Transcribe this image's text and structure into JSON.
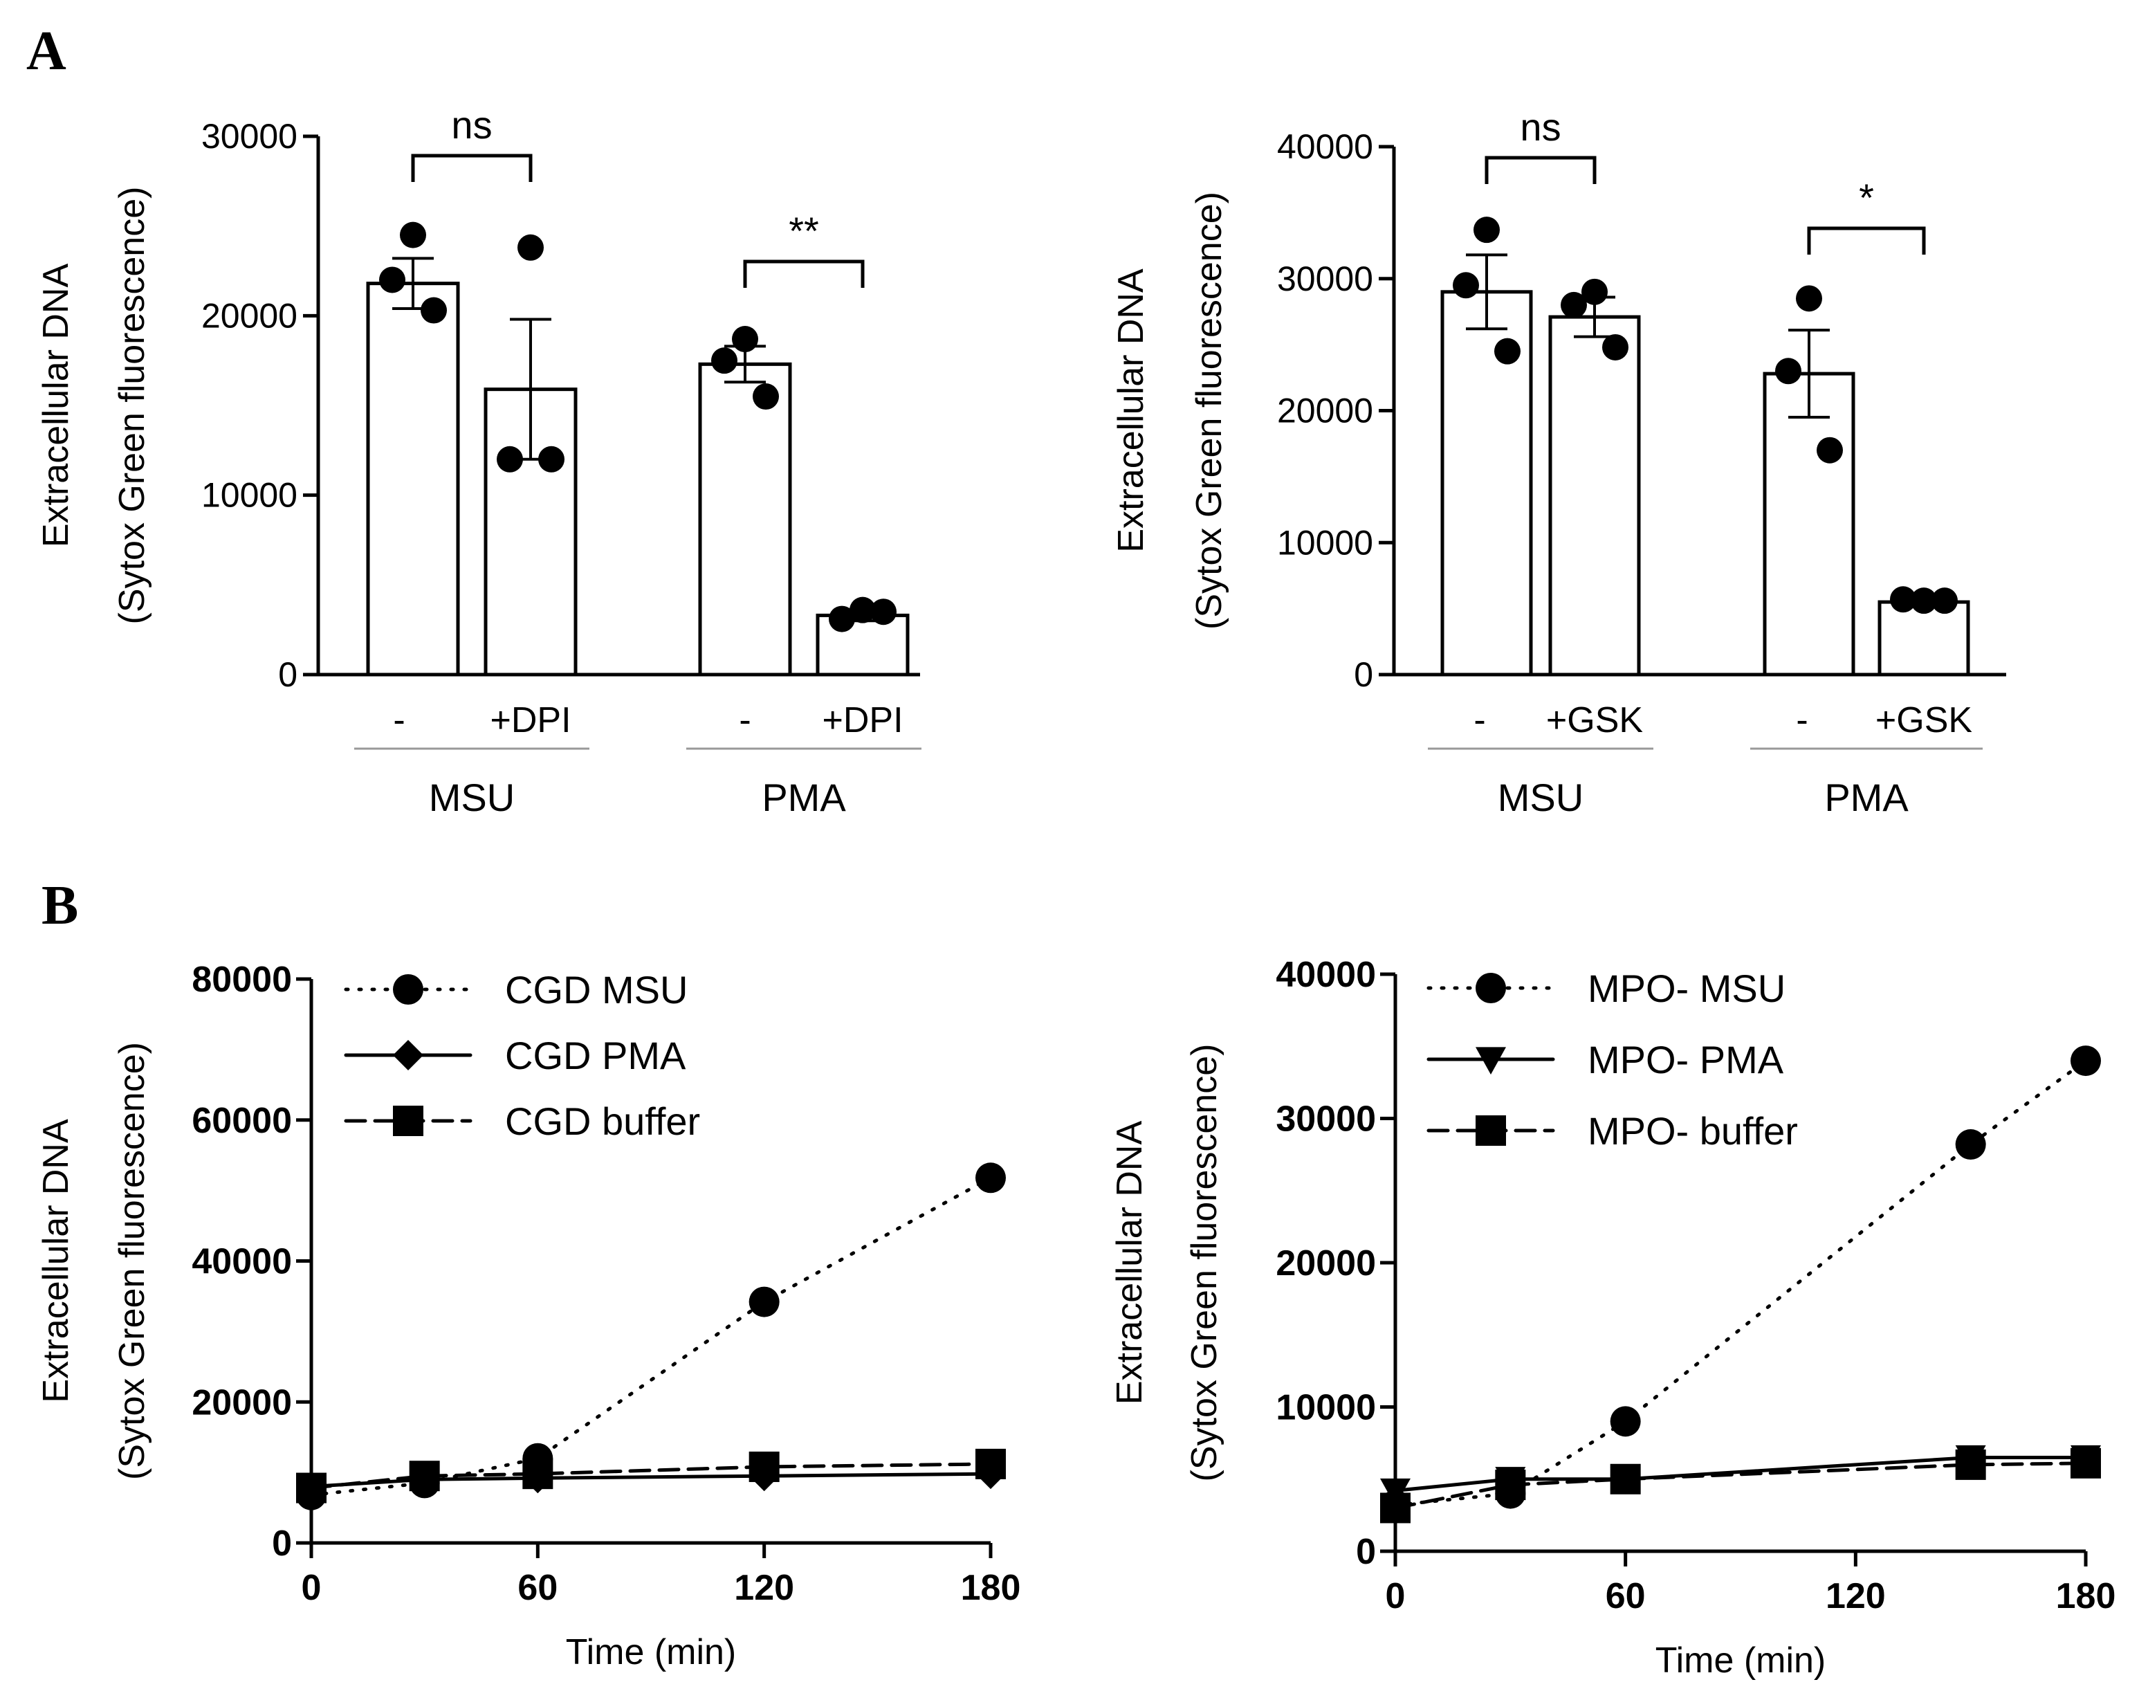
{
  "panels": {
    "A": "A",
    "B": "B"
  },
  "chart_data": [
    {
      "type": "bar",
      "ylabel_line1": "Extracellular DNA",
      "ylabel_line2": "(Sytox Green fluorescence)",
      "ylim": [
        0,
        30000
      ],
      "yticks": [
        "0",
        "10000",
        "20000",
        "30000"
      ],
      "categories": [
        "-",
        "+DPI",
        "-",
        "+DPI"
      ],
      "groups": [
        {
          "label": "MSU",
          "bars": [
            0,
            1
          ]
        },
        {
          "label": "PMA",
          "bars": [
            2,
            3
          ]
        }
      ],
      "values": [
        21800,
        15900,
        17300,
        3300
      ],
      "errors": [
        1400,
        3900,
        1000,
        300
      ],
      "points": [
        [
          24500,
          22000,
          20300
        ],
        [
          23800,
          12000,
          12000
        ],
        [
          18700,
          17500,
          15500
        ],
        [
          3600,
          3100,
          3500
        ]
      ],
      "significance": [
        {
          "label": "ns",
          "from": 0,
          "to": 1
        },
        {
          "label": "**",
          "from": 2,
          "to": 3
        }
      ]
    },
    {
      "type": "bar",
      "ylabel_line1": "Extracellular DNA",
      "ylabel_line2": "(Sytox Green fluorescence)",
      "ylim": [
        0,
        40000
      ],
      "yticks": [
        "0",
        "10000",
        "20000",
        "30000",
        "40000"
      ],
      "categories": [
        "-",
        "+GSK",
        "-",
        "+GSK"
      ],
      "groups": [
        {
          "label": "MSU",
          "bars": [
            0,
            1
          ]
        },
        {
          "label": "PMA",
          "bars": [
            2,
            3
          ]
        }
      ],
      "values": [
        29000,
        27100,
        22800,
        5500
      ],
      "errors": [
        2800,
        1500,
        3300,
        200
      ],
      "points": [
        [
          33700,
          29500,
          24500
        ],
        [
          29000,
          28000,
          24800
        ],
        [
          28500,
          23000,
          17000
        ],
        [
          5600,
          5700,
          5600
        ]
      ],
      "significance": [
        {
          "label": "ns",
          "from": 0,
          "to": 1
        },
        {
          "label": "*",
          "from": 2,
          "to": 3
        }
      ]
    },
    {
      "type": "line",
      "xlabel": "Time (min)",
      "ylabel_line1": "Extracellular DNA",
      "ylabel_line2": "(Sytox Green fluorescence)",
      "xlim": [
        0,
        180
      ],
      "ylim": [
        0,
        80000
      ],
      "xticks": [
        "0",
        "60",
        "120",
        "180"
      ],
      "yticks": [
        "0",
        "20000",
        "40000",
        "60000",
        "80000"
      ],
      "series": [
        {
          "name": "CGD MSU",
          "style": "dotted",
          "marker": "circle",
          "x": [
            0,
            30,
            60,
            120,
            180
          ],
          "y": [
            6800,
            8500,
            12000,
            34200,
            51800
          ],
          "err": [
            0,
            0,
            0,
            0,
            1500
          ]
        },
        {
          "name": "CGD PMA",
          "style": "solid",
          "marker": "diamond",
          "x": [
            0,
            30,
            60,
            120,
            180
          ],
          "y": [
            8000,
            9000,
            9200,
            9500,
            9800
          ],
          "err": [
            0,
            0,
            0,
            0,
            0
          ]
        },
        {
          "name": "CGD buffer",
          "style": "dashed",
          "marker": "square",
          "x": [
            0,
            30,
            60,
            120,
            180
          ],
          "y": [
            7800,
            9500,
            9800,
            10800,
            11200
          ],
          "err": [
            0,
            0,
            0,
            0,
            0
          ]
        }
      ]
    },
    {
      "type": "line",
      "xlabel": "Time (min)",
      "ylabel_line1": "Extracellular DNA",
      "ylabel_line2": "(Sytox Green fluorescence)",
      "xlim": [
        0,
        180
      ],
      "ylim": [
        0,
        40000
      ],
      "xticks": [
        "0",
        "60",
        "120",
        "180"
      ],
      "yticks": [
        "0",
        "10000",
        "20000",
        "30000",
        "40000"
      ],
      "series": [
        {
          "name": "MPO- MSU",
          "style": "dotted",
          "marker": "circle",
          "x": [
            0,
            30,
            60,
            150,
            180
          ],
          "y": [
            3200,
            4000,
            9000,
            28200,
            34000
          ],
          "err": [
            0,
            0,
            0,
            0,
            0
          ]
        },
        {
          "name": "MPO- PMA",
          "style": "solid",
          "marker": "triangle-down",
          "x": [
            0,
            30,
            60,
            150,
            180
          ],
          "y": [
            4200,
            5000,
            5000,
            6500,
            6500
          ],
          "err": [
            0,
            0,
            0,
            0,
            0
          ]
        },
        {
          "name": "MPO- buffer",
          "style": "dashed",
          "marker": "square",
          "x": [
            0,
            30,
            60,
            150,
            180
          ],
          "y": [
            3000,
            4600,
            5000,
            6000,
            6100
          ],
          "err": [
            0,
            0,
            0,
            0,
            0
          ]
        }
      ]
    }
  ]
}
